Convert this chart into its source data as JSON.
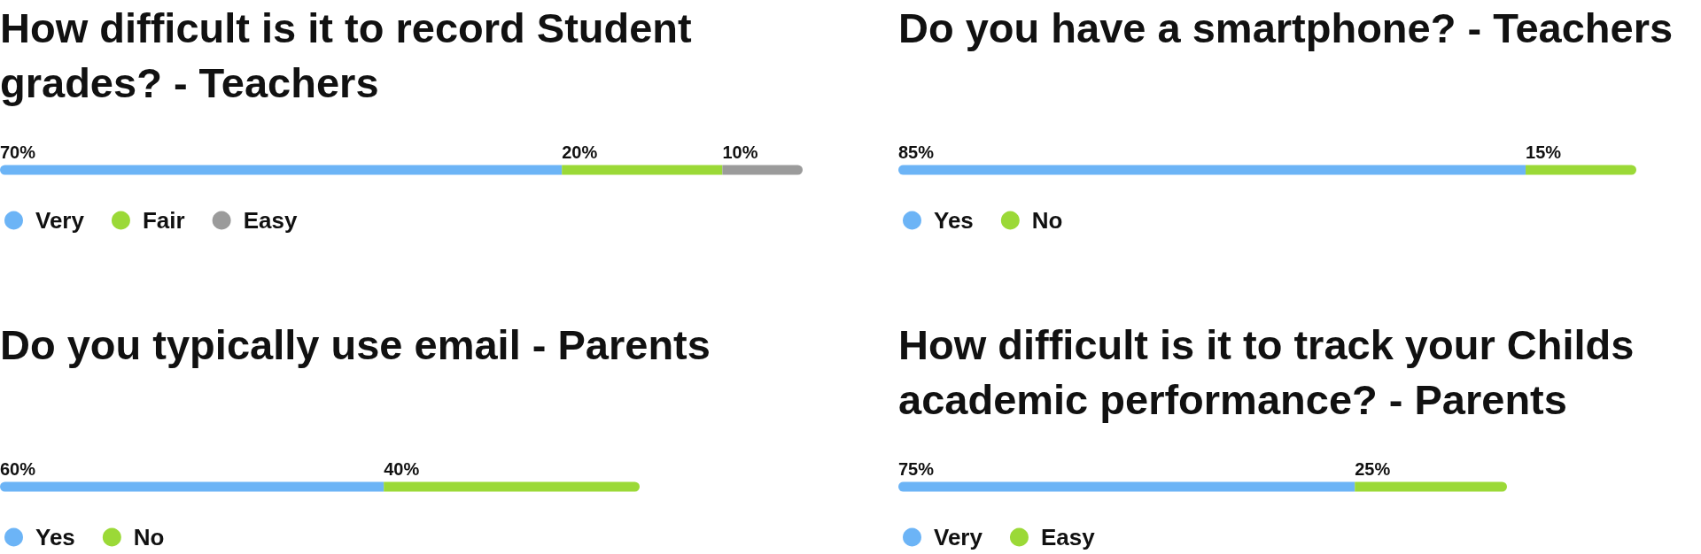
{
  "chart_data": [
    {
      "type": "bar",
      "orientation": "horizontal",
      "stacked": true,
      "title": "How difficult is it to record Student grades? - Teachers",
      "categories": [
        null
      ],
      "series": [
        {
          "name": "Very",
          "color": "#6cb4f6",
          "values": [
            70
          ],
          "value_labels": [
            "70%"
          ]
        },
        {
          "name": "Fair",
          "color": "#9bd937",
          "values": [
            20
          ],
          "value_labels": [
            "20%"
          ]
        },
        {
          "name": "Easy",
          "color": "#9b9b9b",
          "values": [
            10
          ],
          "value_labels": [
            "10%"
          ]
        }
      ],
      "legend": "bottom left",
      "tick_labels": false
    },
    {
      "type": "bar",
      "orientation": "horizontal",
      "stacked": true,
      "title": "Do you have a smartphone? - Teachers",
      "categories": [
        null
      ],
      "series": [
        {
          "name": "Yes",
          "color": "#6cb4f6",
          "values": [
            85
          ],
          "value_labels": [
            "85%"
          ]
        },
        {
          "name": "No",
          "color": "#9bd937",
          "values": [
            15
          ],
          "value_labels": [
            "15%"
          ]
        }
      ],
      "legend": "bottom left",
      "tick_labels": false
    },
    {
      "type": "bar",
      "orientation": "horizontal",
      "stacked": true,
      "title": "Do you typically use email - Parents",
      "categories": [
        null
      ],
      "series": [
        {
          "name": "Yes",
          "color": "#6cb4f6",
          "values": [
            60
          ],
          "value_labels": [
            "60%"
          ]
        },
        {
          "name": "No",
          "color": "#9bd937",
          "values": [
            40
          ],
          "value_labels": [
            "40%"
          ]
        }
      ],
      "legend": "bottom left",
      "tick_labels": false
    },
    {
      "type": "bar",
      "orientation": "horizontal",
      "stacked": true,
      "title": "How difficult is it to track your Childs academic performance? - Parents",
      "categories": [
        null
      ],
      "series": [
        {
          "name": "Very",
          "color": "#6cb4f6",
          "values": [
            75
          ],
          "value_labels": [
            "75%"
          ]
        },
        {
          "name": "Easy",
          "color": "#9bd937",
          "values": [
            25
          ],
          "value_labels": [
            "25%"
          ]
        }
      ],
      "legend": "bottom left",
      "tick_labels": false
    }
  ]
}
